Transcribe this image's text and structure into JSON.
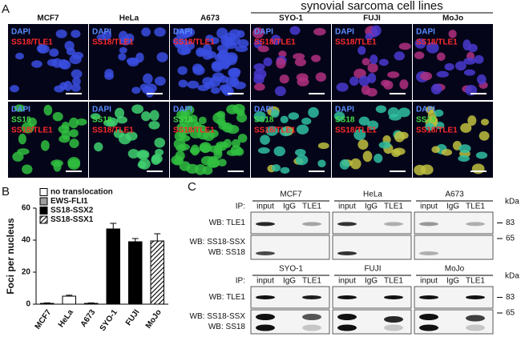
{
  "panel_a": {
    "label": "A",
    "header": "synovial sarcoma cell lines",
    "columns": [
      "MCF7",
      "HeLa",
      "A673",
      "SYO-1",
      "FUJI",
      "MoJo"
    ],
    "rows": [
      {
        "stains": [
          "DAPI",
          "SS18/TLE1"
        ]
      },
      {
        "stains": [
          "DAPI",
          "SS18",
          "SS18/TLE1"
        ]
      }
    ]
  },
  "chart_data": {
    "type": "bar",
    "label": "B",
    "y_label": "Foci per nucleus",
    "categories": [
      "MCF7",
      "HeLa",
      "A673",
      "SYO-1",
      "FUJI",
      "MoJo"
    ],
    "series": [
      {
        "name": "no translocation",
        "color": "#ffffff",
        "values": [
          0.5,
          5,
          null,
          null,
          null,
          null
        ],
        "errors": [
          0.3,
          0.6,
          null,
          null,
          null,
          null
        ]
      },
      {
        "name": "EWS-FLI1",
        "color": "#a0a0a0",
        "values": [
          null,
          null,
          0.5,
          null,
          null,
          null
        ],
        "errors": [
          null,
          null,
          0.3,
          null,
          null,
          null
        ]
      },
      {
        "name": "SS18-SSX2",
        "color": "#000000",
        "values": [
          null,
          null,
          null,
          47,
          39,
          null
        ],
        "errors": [
          null,
          null,
          null,
          3.5,
          2,
          null
        ]
      },
      {
        "name": "SS18-SSX1",
        "color": "hatch",
        "values": [
          null,
          null,
          null,
          null,
          null,
          39.5
        ],
        "errors": [
          null,
          null,
          null,
          null,
          null,
          4.5
        ]
      }
    ],
    "ylim": [
      0,
      60
    ],
    "yticks": [
      0,
      20,
      40,
      60
    ],
    "legend": "top-left"
  },
  "panel_c": {
    "label": "C",
    "ip_label": "IP:",
    "lanes": [
      "input",
      "IgG",
      "TLE1"
    ],
    "units": "kDa",
    "blocks": [
      {
        "cells": [
          "MCF7",
          "HeLa",
          "A673"
        ]
      },
      {
        "cells": [
          "SYO-1",
          "FUJI",
          "MoJo"
        ]
      }
    ],
    "blot_rows": [
      {
        "labels": [
          "WB: TLE1"
        ],
        "marker": 83
      },
      {
        "labels": [
          "WB: SS18-SSX",
          "WB: SS18"
        ],
        "marker": 65
      }
    ]
  }
}
